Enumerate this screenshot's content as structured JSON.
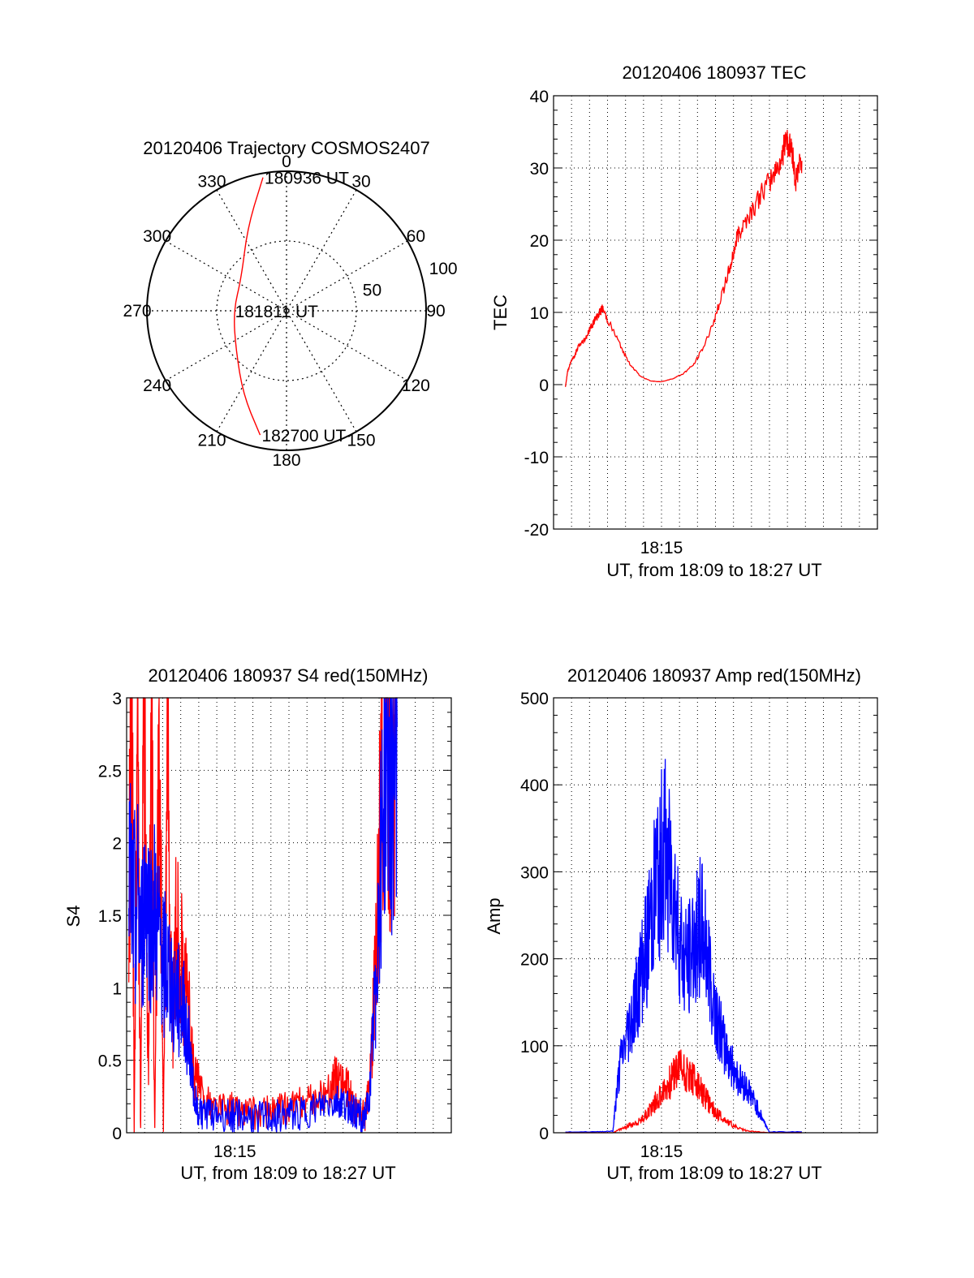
{
  "chart_data": [
    {
      "type": "polar",
      "title": "20120406 Trajectory COSMOS2407",
      "angle_labels": [
        "0",
        "30",
        "60",
        "90",
        "120",
        "150",
        "180",
        "210",
        "240",
        "270",
        "300",
        "330"
      ],
      "radial_labels": [
        "50",
        "100"
      ],
      "rmax": 100,
      "series": [
        {
          "color": "#ff0000",
          "points": [
            {
              "az": 350,
              "zen": 97
            },
            {
              "az": 335,
              "zen": 66
            },
            {
              "az": 306,
              "zen": 40
            },
            {
              "az": 270,
              "zen": 38
            },
            {
              "az": 232,
              "zen": 46
            },
            {
              "az": 207,
              "zen": 68
            },
            {
              "az": 192,
              "zen": 91
            }
          ]
        }
      ],
      "annotations": [
        {
          "text": "180936 UT",
          "az": 350,
          "zen": 97
        },
        {
          "text": "181811 UT",
          "az": 270,
          "zen": 38
        },
        {
          "text": "182700 UT",
          "az": 192,
          "zen": 91
        }
      ]
    },
    {
      "type": "line",
      "title": "20120406 180937 TEC",
      "ylabel": "TEC",
      "xlabel": "UT, from 18:09 to 18:27 UT",
      "ylim": [
        -20,
        40
      ],
      "yticks": [
        "-20",
        "-10",
        "0",
        "10",
        "20",
        "30",
        "40"
      ],
      "xlim": [
        18.15,
        18.45
      ],
      "xticks": [
        {
          "v": 18.25,
          "label": "18:15"
        }
      ],
      "grid": true,
      "series": [
        {
          "color": "#ff0000",
          "points": [
            [
              18.161,
              -0.3
            ],
            [
              18.163,
              1.8
            ],
            [
              18.166,
              3.2
            ],
            [
              18.17,
              4.1
            ],
            [
              18.173,
              5.3
            ],
            [
              18.176,
              5.7
            ],
            [
              18.18,
              6.5
            ],
            [
              18.184,
              7.8
            ],
            [
              18.188,
              8.9
            ],
            [
              18.192,
              9.8
            ],
            [
              18.195,
              10.6
            ],
            [
              18.2,
              9.0
            ],
            [
              18.21,
              6.0
            ],
            [
              18.22,
              3.0
            ],
            [
              18.23,
              1.2
            ],
            [
              18.24,
              0.5
            ],
            [
              18.25,
              0.4
            ],
            [
              18.26,
              0.8
            ],
            [
              18.27,
              1.5
            ],
            [
              18.28,
              2.8
            ],
            [
              18.29,
              5.5
            ],
            [
              18.3,
              9.5
            ],
            [
              18.31,
              14.5
            ],
            [
              18.315,
              17.0
            ],
            [
              18.32,
              20.5
            ],
            [
              18.325,
              22.0
            ],
            [
              18.335,
              24.5
            ],
            [
              18.345,
              27.0
            ],
            [
              18.355,
              29.5
            ],
            [
              18.362,
              31.5
            ],
            [
              18.365,
              34.5
            ],
            [
              18.368,
              33.0
            ],
            [
              18.371,
              32.5
            ],
            [
              18.374,
              28.0
            ],
            [
              18.377,
              30.0
            ],
            [
              18.38,
              31.0
            ]
          ]
        }
      ]
    },
    {
      "type": "line",
      "title": "20120406 180937 S4 red(150MHz)",
      "ylabel": "S4",
      "xlabel": "UT, from 18:09 to 18:27 UT",
      "ylim": [
        0,
        3
      ],
      "yticks": [
        "0",
        "0.5",
        "1",
        "1.5",
        "2",
        "2.5",
        "3"
      ],
      "xlim": [
        18.15,
        18.45
      ],
      "xticks": [
        {
          "v": 18.25,
          "label": "18:15"
        }
      ],
      "grid": true,
      "series": [
        {
          "color": "#ff0000",
          "points": [
            [
              18.152,
              1.6
            ],
            [
              18.155,
              3.0
            ],
            [
              18.157,
              0.0
            ],
            [
              18.16,
              2.8
            ],
            [
              18.163,
              0.0
            ],
            [
              18.166,
              3.0
            ],
            [
              18.17,
              0.4
            ],
            [
              18.173,
              3.0
            ],
            [
              18.176,
              0.0
            ],
            [
              18.18,
              2.9
            ],
            [
              18.184,
              0.0
            ],
            [
              18.188,
              3.0
            ],
            [
              18.192,
              0.6
            ],
            [
              18.196,
              1.5
            ],
            [
              18.2,
              1.2
            ],
            [
              18.204,
              1.0
            ],
            [
              18.208,
              0.8
            ],
            [
              18.212,
              0.4
            ],
            [
              18.216,
              0.35
            ],
            [
              18.222,
              0.22
            ],
            [
              18.23,
              0.18
            ],
            [
              18.24,
              0.17
            ],
            [
              18.25,
              0.16
            ],
            [
              18.26,
              0.15
            ],
            [
              18.27,
              0.14
            ],
            [
              18.28,
              0.14
            ],
            [
              18.29,
              0.15
            ],
            [
              18.3,
              0.17
            ],
            [
              18.31,
              0.2
            ],
            [
              18.32,
              0.22
            ],
            [
              18.33,
              0.25
            ],
            [
              18.34,
              0.32
            ],
            [
              18.345,
              0.4
            ],
            [
              18.35,
              0.35
            ],
            [
              18.355,
              0.3
            ],
            [
              18.36,
              0.18
            ],
            [
              18.365,
              0.14
            ],
            [
              18.37,
              0.12
            ],
            [
              18.374,
              0.3
            ],
            [
              18.378,
              0.8
            ],
            [
              18.382,
              1.5
            ],
            [
              18.386,
              2.5
            ],
            [
              18.39,
              3.0
            ],
            [
              18.395,
              2.2
            ],
            [
              18.4,
              3.0
            ]
          ]
        },
        {
          "color": "#0000ff",
          "points": [
            [
              18.152,
              1.8
            ],
            [
              18.156,
              1.5
            ],
            [
              18.16,
              1.6
            ],
            [
              18.164,
              1.3
            ],
            [
              18.168,
              1.7
            ],
            [
              18.172,
              1.4
            ],
            [
              18.176,
              1.5
            ],
            [
              18.18,
              1.3
            ],
            [
              18.184,
              1.2
            ],
            [
              18.188,
              1.1
            ],
            [
              18.192,
              1.0
            ],
            [
              18.196,
              0.95
            ],
            [
              18.2,
              0.9
            ],
            [
              18.204,
              0.8
            ],
            [
              18.208,
              0.6
            ],
            [
              18.212,
              0.3
            ],
            [
              18.216,
              0.15
            ],
            [
              18.222,
              0.14
            ],
            [
              18.23,
              0.13
            ],
            [
              18.24,
              0.12
            ],
            [
              18.25,
              0.12
            ],
            [
              18.26,
              0.11
            ],
            [
              18.27,
              0.1
            ],
            [
              18.28,
              0.1
            ],
            [
              18.29,
              0.11
            ],
            [
              18.3,
              0.12
            ],
            [
              18.31,
              0.13
            ],
            [
              18.32,
              0.15
            ],
            [
              18.33,
              0.18
            ],
            [
              18.34,
              0.2
            ],
            [
              18.345,
              0.22
            ],
            [
              18.35,
              0.2
            ],
            [
              18.355,
              0.18
            ],
            [
              18.36,
              0.15
            ],
            [
              18.365,
              0.13
            ],
            [
              18.37,
              0.12
            ],
            [
              18.374,
              0.2
            ],
            [
              18.378,
              0.7
            ],
            [
              18.382,
              1.4
            ],
            [
              18.386,
              2.2
            ],
            [
              18.39,
              2.6
            ],
            [
              18.395,
              2.4
            ],
            [
              18.4,
              2.8
            ]
          ]
        }
      ]
    },
    {
      "type": "line",
      "title": "20120406 180937 Amp red(150MHz)",
      "ylabel": "Amp",
      "xlabel": "UT, from 18:09 to 18:27 UT",
      "ylim": [
        0,
        500
      ],
      "yticks": [
        "0",
        "100",
        "200",
        "300",
        "400",
        "500"
      ],
      "xlim": [
        18.15,
        18.45
      ],
      "xticks": [
        {
          "v": 18.25,
          "label": "18:15"
        }
      ],
      "grid": true,
      "series": [
        {
          "color": "#0000ff",
          "points": [
            [
              18.161,
              1
            ],
            [
              18.19,
              1
            ],
            [
              18.205,
              2
            ],
            [
              18.208,
              40
            ],
            [
              18.212,
              80
            ],
            [
              18.218,
              110
            ],
            [
              18.222,
              130
            ],
            [
              18.226,
              150
            ],
            [
              18.23,
              175
            ],
            [
              18.234,
              200
            ],
            [
              18.238,
              230
            ],
            [
              18.242,
              260
            ],
            [
              18.246,
              290
            ],
            [
              18.25,
              310
            ],
            [
              18.254,
              330
            ],
            [
              18.258,
              300
            ],
            [
              18.262,
              270
            ],
            [
              18.266,
              230
            ],
            [
              18.27,
              200
            ],
            [
              18.274,
              190
            ],
            [
              18.278,
              210
            ],
            [
              18.282,
              230
            ],
            [
              18.286,
              240
            ],
            [
              18.29,
              220
            ],
            [
              18.294,
              190
            ],
            [
              18.298,
              160
            ],
            [
              18.302,
              130
            ],
            [
              18.306,
              110
            ],
            [
              18.31,
              95
            ],
            [
              18.314,
              80
            ],
            [
              18.318,
              70
            ],
            [
              18.322,
              60
            ],
            [
              18.326,
              55
            ],
            [
              18.33,
              50
            ],
            [
              18.334,
              40
            ],
            [
              18.338,
              30
            ],
            [
              18.342,
              20
            ],
            [
              18.346,
              10
            ],
            [
              18.35,
              1
            ],
            [
              18.38,
              1
            ]
          ]
        },
        {
          "color": "#ff0000",
          "points": [
            [
              18.161,
              0
            ],
            [
              18.205,
              0
            ],
            [
              18.21,
              3
            ],
            [
              18.216,
              6
            ],
            [
              18.222,
              10
            ],
            [
              18.228,
              12
            ],
            [
              18.232,
              15
            ],
            [
              18.236,
              22
            ],
            [
              18.24,
              28
            ],
            [
              18.244,
              35
            ],
            [
              18.248,
              42
            ],
            [
              18.252,
              48
            ],
            [
              18.256,
              55
            ],
            [
              18.26,
              62
            ],
            [
              18.264,
              72
            ],
            [
              18.268,
              76
            ],
            [
              18.272,
              70
            ],
            [
              18.276,
              66
            ],
            [
              18.28,
              60
            ],
            [
              18.284,
              52
            ],
            [
              18.288,
              45
            ],
            [
              18.292,
              38
            ],
            [
              18.296,
              30
            ],
            [
              18.3,
              24
            ],
            [
              18.306,
              18
            ],
            [
              18.312,
              12
            ],
            [
              18.318,
              7
            ],
            [
              18.324,
              4
            ],
            [
              18.33,
              2
            ],
            [
              18.34,
              1
            ],
            [
              18.35,
              0
            ],
            [
              18.38,
              0
            ]
          ]
        }
      ]
    }
  ]
}
